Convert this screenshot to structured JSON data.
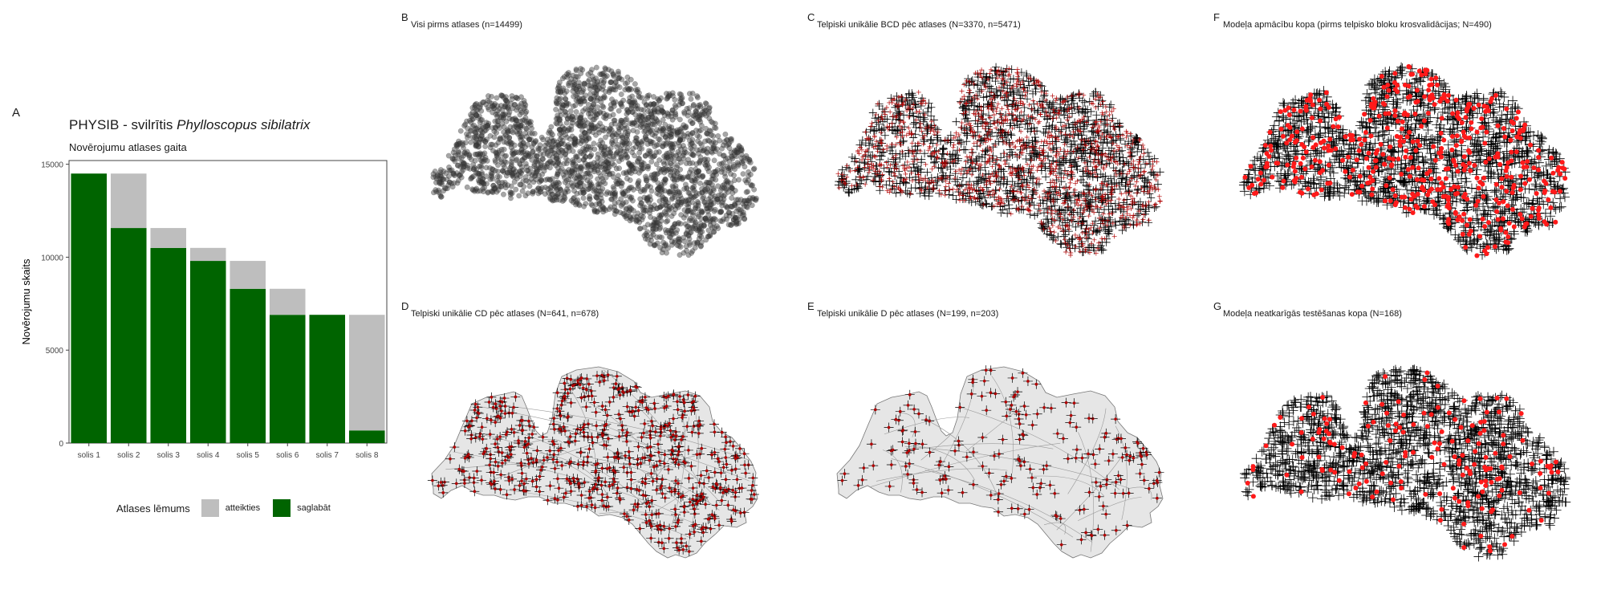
{
  "panel_tags": {
    "a": "A",
    "b": "B",
    "c": "C",
    "d": "D",
    "e": "E",
    "f": "F",
    "g": "G"
  },
  "panel_a": {
    "title_prefix": "PHYSIB - svilrītis ",
    "title_species": "Phylloscopus sibilatrix",
    "subtitle": "Novērojumu atlases gaita",
    "ylabel": "Novērojumu skaits",
    "legend_title": "Atlases lēmums",
    "legend_items": [
      {
        "label": "atteikties",
        "color": "#bebebe"
      },
      {
        "label": "saglabāt",
        "color": "#006400"
      }
    ]
  },
  "chart_data": {
    "type": "bar",
    "stacked": true,
    "categories": [
      "solis 1",
      "solis 2",
      "solis 3",
      "solis 4",
      "solis 5",
      "solis 6",
      "solis 7",
      "solis 8"
    ],
    "series": [
      {
        "name": "saglabāt",
        "color": "#006400",
        "values": [
          14499,
          11570,
          10500,
          9800,
          8300,
          6900,
          6900,
          680
        ]
      },
      {
        "name": "atteikties",
        "color": "#bebebe",
        "values": [
          0,
          2929,
          1070,
          700,
          1500,
          1400,
          0,
          6220
        ]
      }
    ],
    "yticks": [
      0,
      5000,
      10000,
      15000
    ],
    "ylim": [
      0,
      15200
    ]
  },
  "maps": {
    "b": {
      "title": "Visi pirms atlases (n=14499)"
    },
    "c": {
      "title": "Telpiski unikālie BCD pēc atlases (N=3370, n=5471)"
    },
    "d": {
      "title": "Telpiski unikālie CD pēc atlases (N=641, n=678)"
    },
    "e": {
      "title": "Telpiski unikālie D pēc atlases (N=199, n=203)"
    },
    "f": {
      "title": "Modeļa apmācību kopa (pirms telpisko bloku krosvalidācijas; N=490)"
    },
    "g": {
      "title": "Modeļa neatkarīgās testēšanas kopa (N=168)"
    }
  },
  "colors": {
    "keep": "#006400",
    "drop": "#bebebe",
    "point_red": "#ff1a1a",
    "cross_dark": "#4a0000",
    "land": "#e6e6e6",
    "grey_points": "#3a3a3a"
  }
}
